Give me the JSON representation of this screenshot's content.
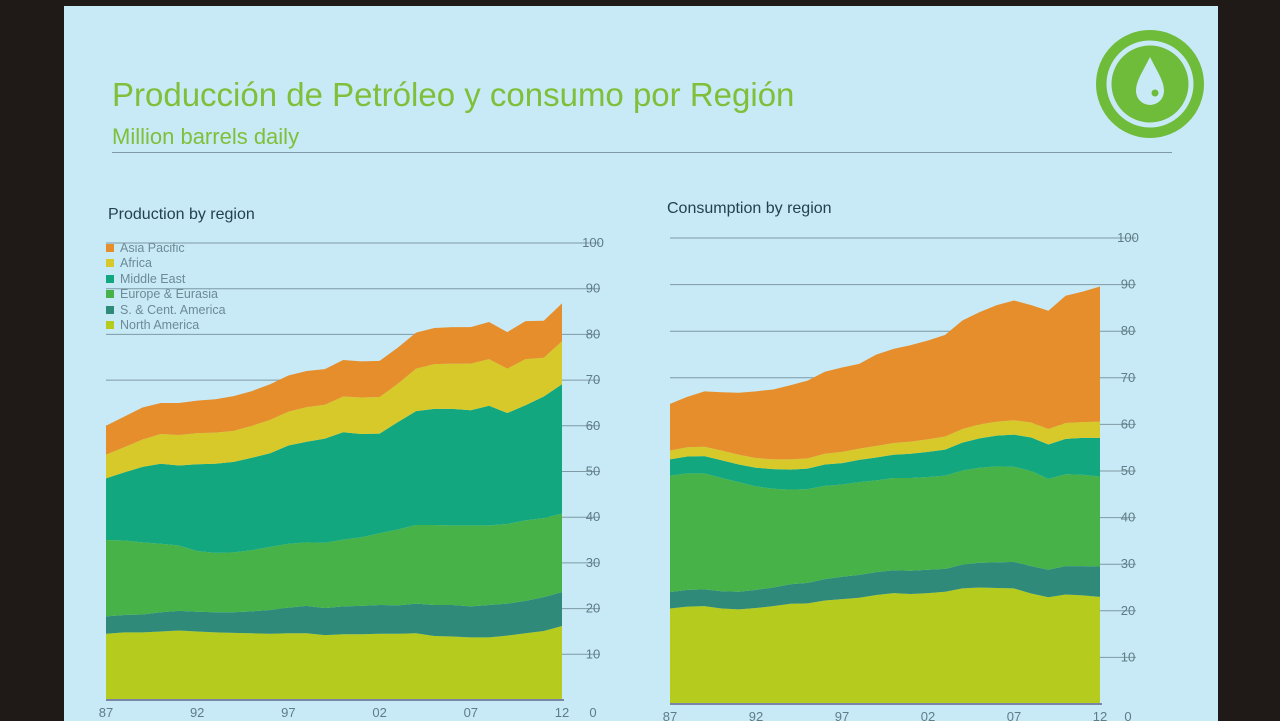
{
  "slide": {
    "title": "Producción de Petróleo y consumo por Región",
    "subtitle": "Million barrels daily",
    "logo_icon": "oil-drop-icon",
    "accent_color": "#7fbf3a"
  },
  "chart_data": [
    {
      "type": "area",
      "stacked": true,
      "title": "Production by region",
      "xlabel": "",
      "ylabel": "",
      "x": [
        1987,
        1988,
        1989,
        1990,
        1991,
        1992,
        1993,
        1994,
        1995,
        1996,
        1997,
        1998,
        1999,
        2000,
        2001,
        2002,
        2003,
        2004,
        2005,
        2006,
        2007,
        2008,
        2009,
        2010,
        2011,
        2012
      ],
      "x_tick_labels": [
        "87",
        "92",
        "97",
        "02",
        "07",
        "12"
      ],
      "x_tick_values": [
        1987,
        1992,
        1997,
        2002,
        2007,
        2012
      ],
      "ylim": [
        0,
        100
      ],
      "y_ticks": [
        0,
        10,
        20,
        30,
        40,
        50,
        60,
        70,
        80,
        90,
        100
      ],
      "y_tick_labels": [
        "0",
        "10",
        "20",
        "30",
        "40",
        "50",
        "60",
        "70",
        "80",
        "90",
        "100"
      ],
      "grid": true,
      "legend": "top-left",
      "series": [
        {
          "name": "North America",
          "color": "#b5cc1e",
          "values": [
            14.5,
            14.8,
            14.8,
            15.0,
            15.2,
            15.0,
            14.8,
            14.7,
            14.6,
            14.5,
            14.6,
            14.6,
            14.2,
            14.4,
            14.4,
            14.5,
            14.5,
            14.6,
            14.0,
            13.9,
            13.7,
            13.7,
            14.1,
            14.6,
            15.1,
            16.2
          ]
        },
        {
          "name": "S. & Cent. America",
          "color": "#2f8a7a",
          "values": [
            3.8,
            3.8,
            3.9,
            4.2,
            4.3,
            4.3,
            4.4,
            4.5,
            4.8,
            5.2,
            5.6,
            6.0,
            5.9,
            6.1,
            6.2,
            6.3,
            6.2,
            6.5,
            6.8,
            6.9,
            6.8,
            7.1,
            7.0,
            7.1,
            7.4,
            7.4
          ]
        },
        {
          "name": "Europe & Eurasia",
          "color": "#47b248",
          "values": [
            16.7,
            16.3,
            15.8,
            15.0,
            14.3,
            13.3,
            13.0,
            13.1,
            13.4,
            13.8,
            14.0,
            13.9,
            14.3,
            14.6,
            15.0,
            15.7,
            16.6,
            17.2,
            17.5,
            17.4,
            17.7,
            17.4,
            17.4,
            17.6,
            17.3,
            17.2
          ]
        },
        {
          "name": "Middle East",
          "color": "#13a780",
          "values": [
            13.5,
            14.9,
            16.5,
            17.5,
            17.5,
            19.0,
            19.5,
            19.8,
            20.2,
            20.5,
            21.5,
            22.0,
            22.8,
            23.5,
            22.6,
            21.8,
            23.5,
            24.9,
            25.4,
            25.5,
            25.2,
            26.2,
            24.3,
            25.2,
            26.6,
            28.3
          ]
        },
        {
          "name": "Africa",
          "color": "#d8c92a",
          "values": [
            5.2,
            5.5,
            6.0,
            6.5,
            6.7,
            6.8,
            6.8,
            6.8,
            7.0,
            7.3,
            7.4,
            7.6,
            7.4,
            7.8,
            8.0,
            8.0,
            8.4,
            9.3,
            9.8,
            9.9,
            10.2,
            10.2,
            9.7,
            10.1,
            8.5,
            9.4
          ]
        },
        {
          "name": "Asia Pacific",
          "color": "#e68e2c",
          "values": [
            6.3,
            6.7,
            7.0,
            6.8,
            7.0,
            7.1,
            7.3,
            7.6,
            7.6,
            7.8,
            7.9,
            7.9,
            7.8,
            8.0,
            7.9,
            7.9,
            7.9,
            7.9,
            7.9,
            8.0,
            8.0,
            8.1,
            8.0,
            8.3,
            8.1,
            8.3
          ]
        }
      ]
    },
    {
      "type": "area",
      "stacked": true,
      "title": "Consumption by region",
      "xlabel": "",
      "ylabel": "",
      "x": [
        1987,
        1988,
        1989,
        1990,
        1991,
        1992,
        1993,
        1994,
        1995,
        1996,
        1997,
        1998,
        1999,
        2000,
        2001,
        2002,
        2003,
        2004,
        2005,
        2006,
        2007,
        2008,
        2009,
        2010,
        2011,
        2012
      ],
      "x_tick_labels": [
        "87",
        "92",
        "97",
        "02",
        "07",
        "12"
      ],
      "x_tick_values": [
        1987,
        1992,
        1997,
        2002,
        2007,
        2012
      ],
      "ylim": [
        0,
        100
      ],
      "y_ticks": [
        0,
        10,
        20,
        30,
        40,
        50,
        60,
        70,
        80,
        90,
        100
      ],
      "y_tick_labels": [
        "0",
        "10",
        "20",
        "30",
        "40",
        "50",
        "60",
        "70",
        "80",
        "90",
        "100"
      ],
      "grid": true,
      "legend": "top-left",
      "series": [
        {
          "name": "North America",
          "color": "#b5cc1e",
          "values": [
            20.5,
            20.9,
            21.0,
            20.5,
            20.3,
            20.6,
            21.0,
            21.5,
            21.6,
            22.2,
            22.5,
            22.8,
            23.4,
            23.8,
            23.6,
            23.8,
            24.1,
            24.8,
            25.0,
            24.9,
            24.8,
            23.7,
            22.9,
            23.5,
            23.3,
            23.0
          ]
        },
        {
          "name": "S. & Cent. America",
          "color": "#2f8a7a",
          "values": [
            3.5,
            3.6,
            3.6,
            3.7,
            3.8,
            3.9,
            4.0,
            4.2,
            4.4,
            4.6,
            4.8,
            4.9,
            4.9,
            4.9,
            5.0,
            5.0,
            4.9,
            5.1,
            5.3,
            5.5,
            5.7,
            5.9,
            5.9,
            6.1,
            6.3,
            6.5
          ]
        },
        {
          "name": "Europe & Eurasia",
          "color": "#47b248",
          "values": [
            25.0,
            25.0,
            24.9,
            24.3,
            23.5,
            22.2,
            21.2,
            20.3,
            20.1,
            20.0,
            19.8,
            19.9,
            19.7,
            19.8,
            19.9,
            19.9,
            20.0,
            20.2,
            20.4,
            20.6,
            20.4,
            20.4,
            19.5,
            19.7,
            19.6,
            19.3
          ]
        },
        {
          "name": "Middle East",
          "color": "#13a780",
          "values": [
            3.5,
            3.6,
            3.7,
            3.8,
            3.8,
            4.0,
            4.2,
            4.3,
            4.4,
            4.6,
            4.6,
            4.8,
            4.9,
            5.0,
            5.2,
            5.4,
            5.6,
            6.0,
            6.3,
            6.6,
            6.9,
            7.2,
            7.4,
            7.6,
            7.9,
            8.3
          ]
        },
        {
          "name": "Africa",
          "color": "#d8c92a",
          "values": [
            1.9,
            2.0,
            2.0,
            2.1,
            2.1,
            2.1,
            2.1,
            2.2,
            2.2,
            2.3,
            2.4,
            2.4,
            2.5,
            2.5,
            2.6,
            2.7,
            2.8,
            2.9,
            3.0,
            3.0,
            3.1,
            3.2,
            3.3,
            3.4,
            3.4,
            3.5
          ]
        },
        {
          "name": "Asia Pacific",
          "color": "#e68e2c",
          "values": [
            10.0,
            10.8,
            11.9,
            12.5,
            13.3,
            14.3,
            15.0,
            15.9,
            16.7,
            17.6,
            18.1,
            18.2,
            19.6,
            20.2,
            20.7,
            21.2,
            21.8,
            23.3,
            24.1,
            25.0,
            25.7,
            25.2,
            25.4,
            27.3,
            28.0,
            29.0
          ]
        }
      ]
    }
  ]
}
